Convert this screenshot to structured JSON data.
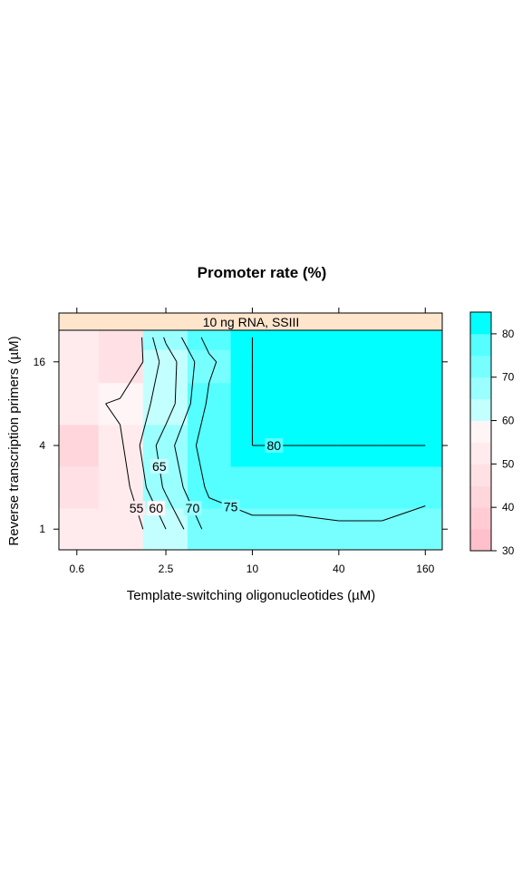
{
  "chart_data": {
    "type": "heatmap",
    "title": "Promoter rate (%)",
    "panel": "10 ng RNA, SSIII",
    "xlabel": "Template-switching oligonucleotides (µM)",
    "ylabel": "Reverse transcription primers (µM)",
    "x_scale": "log2",
    "y_scale": "log2",
    "x_ticks": [
      0.6,
      2.5,
      10,
      40,
      160
    ],
    "x_tick_labels": [
      "0.6",
      "2.5",
      "10",
      "40",
      "160"
    ],
    "y_ticks": [
      1,
      4,
      16
    ],
    "y_tick_labels": [
      "1",
      "4",
      "16"
    ],
    "x_range": [
      0.45,
      210
    ],
    "y_range": [
      0.71,
      27
    ],
    "x": [
      0.6,
      1.2,
      2.5,
      5,
      10,
      20,
      40,
      80,
      160
    ],
    "y": [
      1,
      2,
      4,
      8,
      16,
      24
    ],
    "z": [
      [
        52,
        50,
        60,
        72,
        73,
        73,
        74,
        74,
        70
      ],
      [
        45,
        52,
        66,
        76,
        79,
        79,
        79,
        79,
        79
      ],
      [
        43,
        54,
        68,
        78,
        80,
        80,
        80,
        80,
        80
      ],
      [
        53,
        56,
        62,
        76,
        80,
        80,
        83,
        82,
        80
      ],
      [
        53,
        48,
        62,
        74,
        80,
        80,
        80,
        80,
        80
      ],
      [
        52,
        45,
        66,
        77,
        80,
        83,
        81,
        80,
        80
      ]
    ],
    "contour_labels": [
      "55",
      "60",
      "65",
      "70",
      "75",
      "80"
    ],
    "colorkey": {
      "min": 30,
      "max": 85,
      "ticks": [
        30,
        40,
        50,
        60,
        70,
        80
      ],
      "breaks": [
        30,
        35,
        40,
        45,
        50,
        55,
        60,
        65,
        70,
        75,
        80,
        85
      ],
      "colors": [
        "#ffc0cb",
        "#ffccd3",
        "#ffd6dc",
        "#ffe1e5",
        "#ffebee",
        "#fff5f7",
        "#c4ffff",
        "#9affff",
        "#77ffff",
        "#55ffff",
        "#00ffff"
      ]
    }
  }
}
